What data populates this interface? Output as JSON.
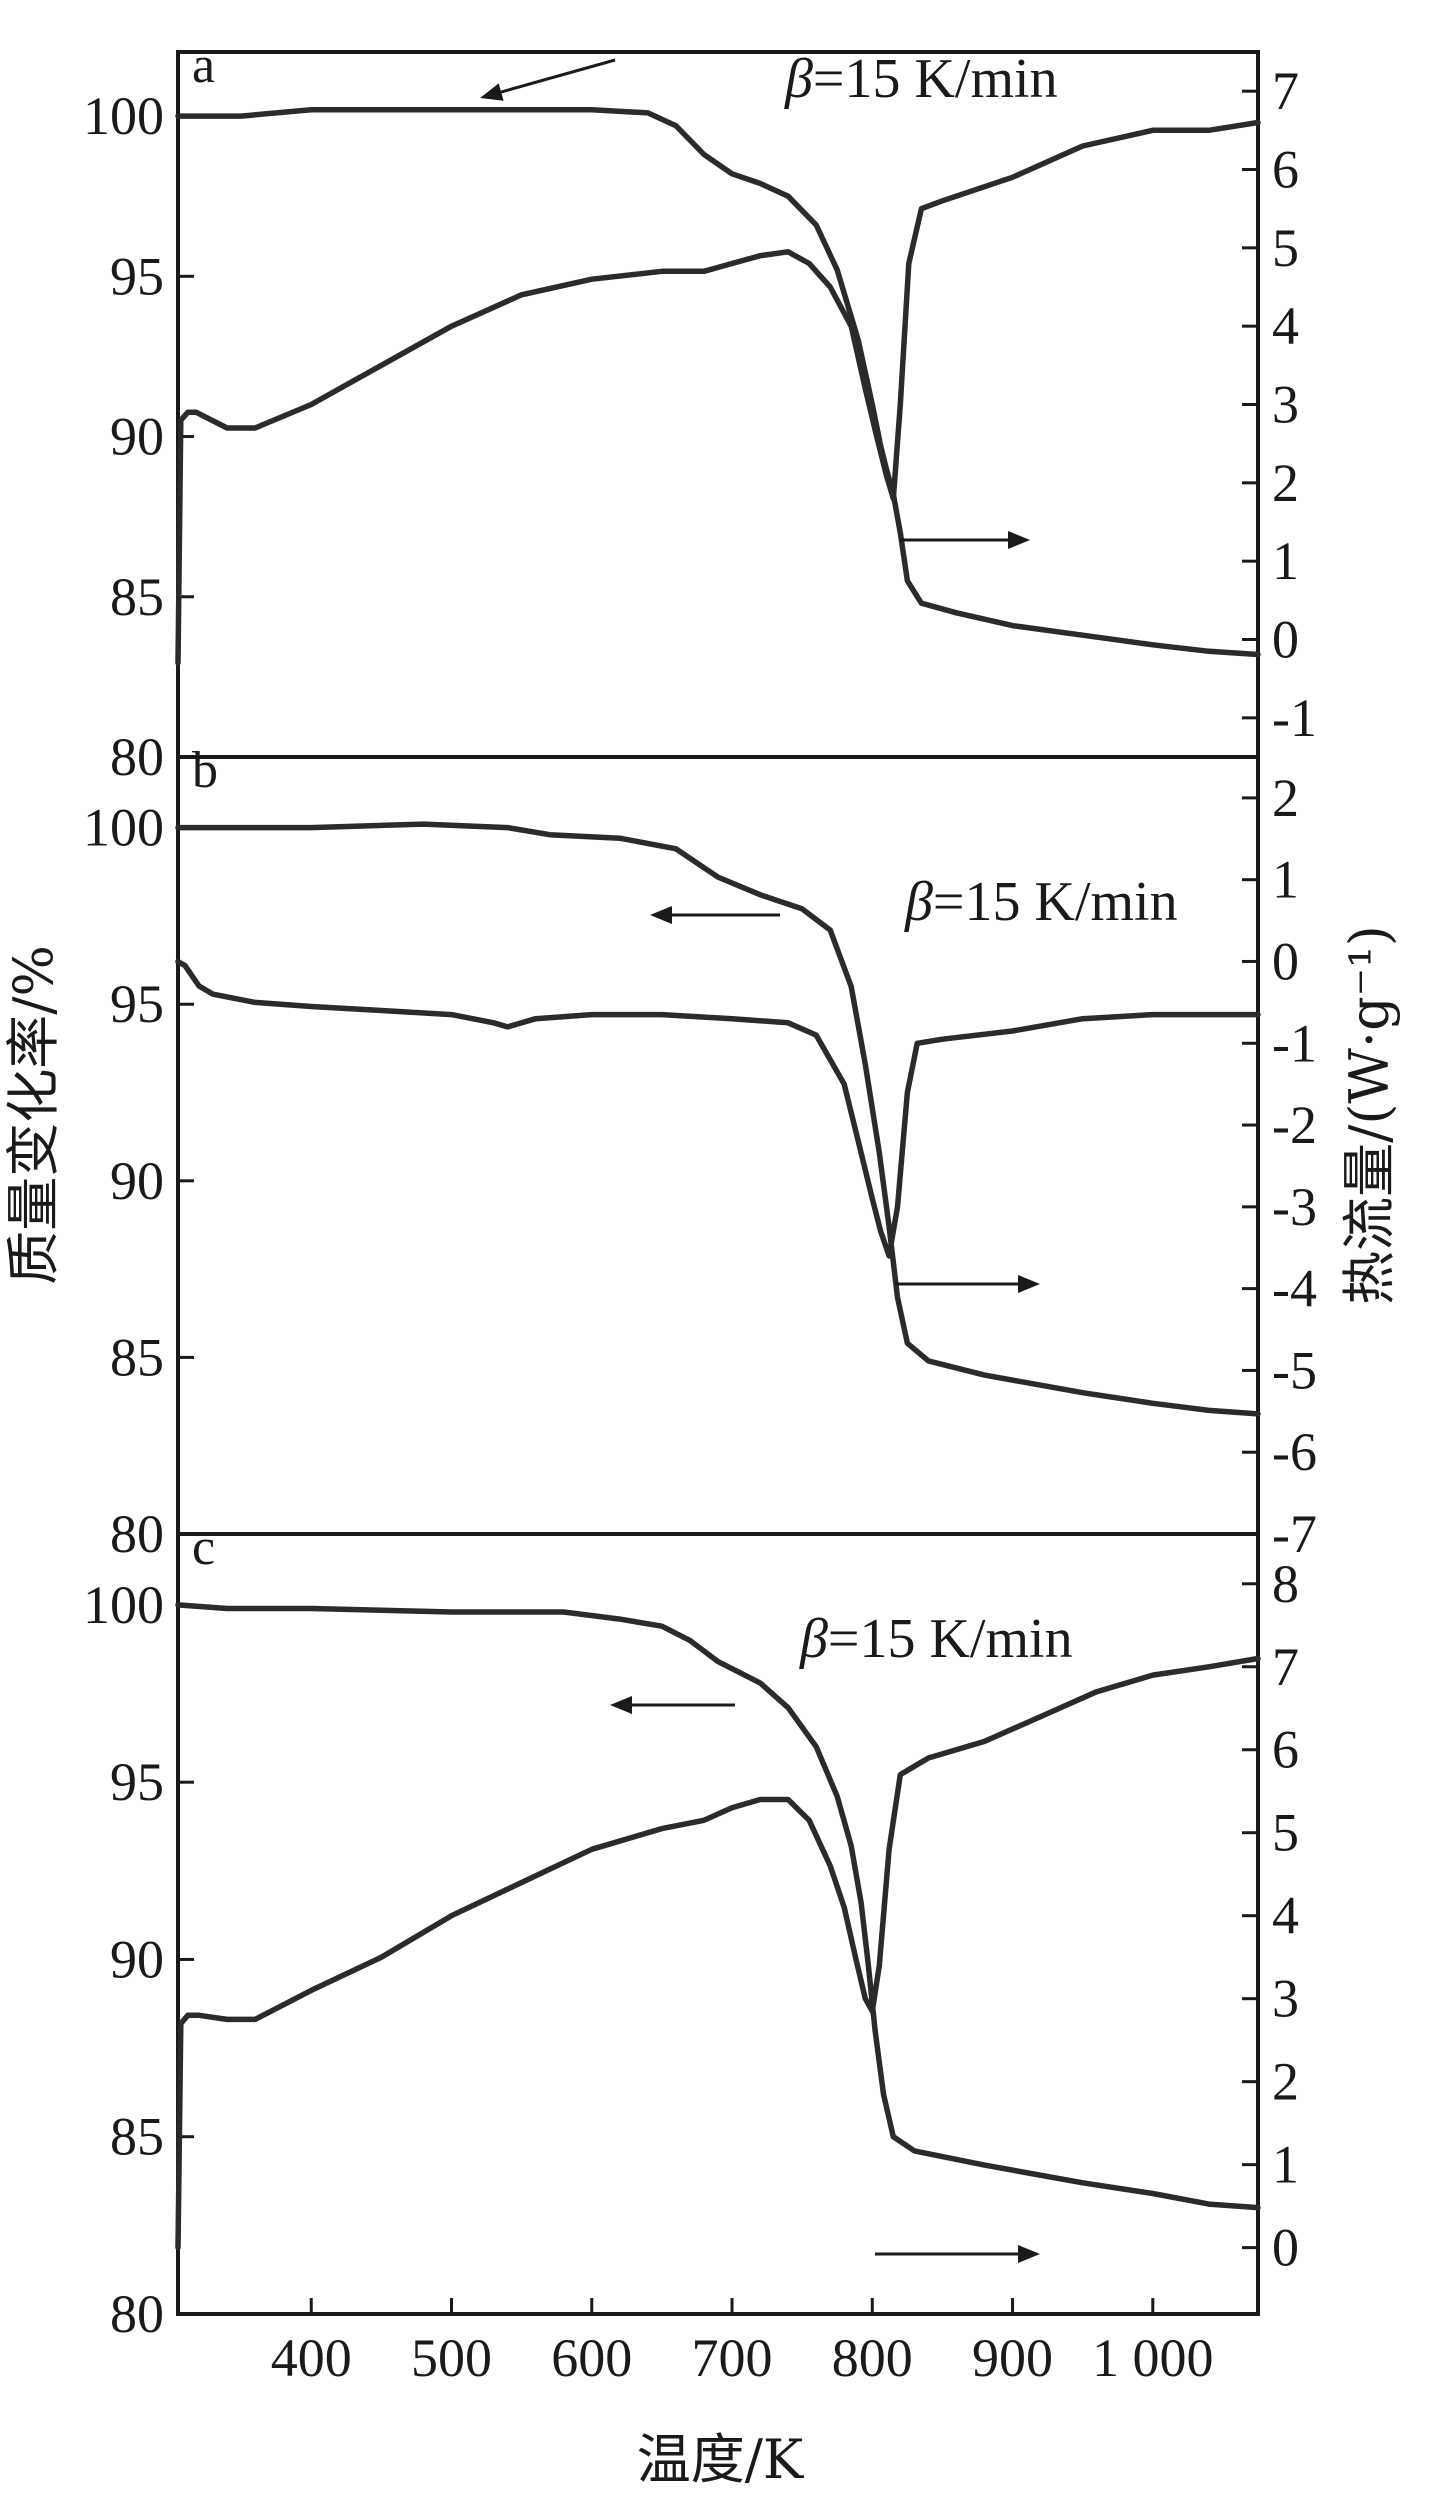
{
  "chart_data": {
    "type": "line",
    "layout": "three stacked panels sharing x axis",
    "xlabel": "温度/K",
    "ylabel_left": "质量变化率/%",
    "ylabel_right": "热流量/(W·g⁻¹)",
    "xlim": [
      305,
      1075
    ],
    "x_ticks": [
      400,
      500,
      600,
      700,
      800,
      900,
      1000
    ],
    "x_tick_labels": [
      "400",
      "500",
      "600",
      "700",
      "800",
      "900",
      "1 000"
    ],
    "panels": [
      {
        "label": "a",
        "annotation": "=15 K/min",
        "annotation_symbol": "β",
        "left_ylim": [
          80,
          102
        ],
        "left_ticks": [
          80,
          85,
          90,
          95,
          100
        ],
        "right_ylim": [
          -1.5,
          7.5
        ],
        "right_ticks": [
          -1,
          0,
          1,
          2,
          3,
          4,
          5,
          6,
          7
        ],
        "series": [
          {
            "axis": "left",
            "arrow": "left",
            "points": [
              [
                305,
                100
              ],
              [
                350,
                100
              ],
              [
                400,
                100.2
              ],
              [
                500,
                100.2
              ],
              [
                600,
                100.2
              ],
              [
                640,
                100.1
              ],
              [
                660,
                99.7
              ],
              [
                680,
                98.8
              ],
              [
                700,
                98.2
              ],
              [
                720,
                97.9
              ],
              [
                740,
                97.5
              ],
              [
                760,
                96.6
              ],
              [
                775,
                95.2
              ],
              [
                790,
                93
              ],
              [
                800,
                91
              ],
              [
                806,
                89.7
              ],
              [
                810,
                89
              ],
              [
                815,
                88.2
              ],
              [
                820,
                87
              ],
              [
                825,
                85.5
              ],
              [
                835,
                84.8
              ],
              [
                860,
                84.5
              ],
              [
                900,
                84.1
              ],
              [
                950,
                83.8
              ],
              [
                1000,
                83.5
              ],
              [
                1040,
                83.3
              ],
              [
                1075,
                83.2
              ]
            ]
          },
          {
            "axis": "right",
            "arrow": "right",
            "points": [
              [
                305,
                -0.3
              ],
              [
                307,
                2.8
              ],
              [
                312,
                2.9
              ],
              [
                318,
                2.9
              ],
              [
                340,
                2.7
              ],
              [
                360,
                2.7
              ],
              [
                400,
                3
              ],
              [
                450,
                3.5
              ],
              [
                500,
                4
              ],
              [
                550,
                4.4
              ],
              [
                600,
                4.6
              ],
              [
                650,
                4.7
              ],
              [
                680,
                4.7
              ],
              [
                700,
                4.8
              ],
              [
                720,
                4.9
              ],
              [
                740,
                4.95
              ],
              [
                755,
                4.8
              ],
              [
                770,
                4.5
              ],
              [
                785,
                4
              ],
              [
                795,
                3.2
              ],
              [
                803,
                2.6
              ],
              [
                810,
                2.1
              ],
              [
                815,
                1.8
              ],
              [
                820,
                3
              ],
              [
                826,
                4.8
              ],
              [
                835,
                5.5
              ],
              [
                850,
                5.6
              ],
              [
                900,
                5.9
              ],
              [
                950,
                6.3
              ],
              [
                1000,
                6.5
              ],
              [
                1040,
                6.5
              ],
              [
                1075,
                6.6
              ]
            ]
          }
        ]
      },
      {
        "label": "b",
        "annotation": "=15 K/min",
        "annotation_symbol": "β",
        "left_ylim": [
          80,
          102
        ],
        "left_ticks": [
          80,
          85,
          90,
          95,
          100
        ],
        "right_ylim": [
          -7,
          2.5
        ],
        "right_ticks": [
          -7,
          -6,
          -5,
          -4,
          -3,
          -2,
          -1,
          0,
          1,
          2
        ],
        "series": [
          {
            "axis": "left",
            "arrow": "left",
            "points": [
              [
                305,
                100
              ],
              [
                350,
                100
              ],
              [
                400,
                100
              ],
              [
                480,
                100.1
              ],
              [
                540,
                100
              ],
              [
                570,
                99.8
              ],
              [
                620,
                99.7
              ],
              [
                660,
                99.4
              ],
              [
                690,
                98.6
              ],
              [
                720,
                98.1
              ],
              [
                750,
                97.7
              ],
              [
                770,
                97.1
              ],
              [
                785,
                95.5
              ],
              [
                795,
                93.3
              ],
              [
                805,
                90.8
              ],
              [
                812,
                88.7
              ],
              [
                818,
                86.7
              ],
              [
                825,
                85.4
              ],
              [
                840,
                84.9
              ],
              [
                880,
                84.5
              ],
              [
                950,
                84
              ],
              [
                1000,
                83.7
              ],
              [
                1040,
                83.5
              ],
              [
                1075,
                83.4
              ]
            ]
          },
          {
            "axis": "right",
            "arrow": "right",
            "points": [
              [
                305,
                0
              ],
              [
                310,
                -0.05
              ],
              [
                320,
                -0.3
              ],
              [
                330,
                -0.4
              ],
              [
                360,
                -0.5
              ],
              [
                400,
                -0.55
              ],
              [
                450,
                -0.6
              ],
              [
                500,
                -0.65
              ],
              [
                530,
                -0.75
              ],
              [
                540,
                -0.8
              ],
              [
                560,
                -0.7
              ],
              [
                600,
                -0.65
              ],
              [
                650,
                -0.65
              ],
              [
                700,
                -0.7
              ],
              [
                740,
                -0.75
              ],
              [
                760,
                -0.9
              ],
              [
                780,
                -1.5
              ],
              [
                790,
                -2.2
              ],
              [
                800,
                -2.9
              ],
              [
                806,
                -3.3
              ],
              [
                812,
                -3.6
              ],
              [
                818,
                -3.0
              ],
              [
                825,
                -1.6
              ],
              [
                832,
                -1.0
              ],
              [
                850,
                -0.95
              ],
              [
                900,
                -0.85
              ],
              [
                950,
                -0.7
              ],
              [
                1000,
                -0.65
              ],
              [
                1040,
                -0.65
              ],
              [
                1075,
                -0.65
              ]
            ]
          }
        ]
      },
      {
        "label": "c",
        "annotation": "=15 K/min",
        "annotation_symbol": "β",
        "left_ylim": [
          80,
          102
        ],
        "left_ticks": [
          80,
          85,
          90,
          95,
          100
        ],
        "right_ylim": [
          -0.8,
          8.6
        ],
        "right_ticks": [
          0,
          1,
          2,
          3,
          4,
          5,
          6,
          7,
          8
        ],
        "series": [
          {
            "axis": "left",
            "arrow": "left",
            "points": [
              [
                305,
                100
              ],
              [
                340,
                99.9
              ],
              [
                400,
                99.9
              ],
              [
                500,
                99.8
              ],
              [
                580,
                99.8
              ],
              [
                620,
                99.6
              ],
              [
                650,
                99.4
              ],
              [
                670,
                99
              ],
              [
                690,
                98.4
              ],
              [
                720,
                97.8
              ],
              [
                740,
                97.1
              ],
              [
                760,
                96
              ],
              [
                775,
                94.6
              ],
              [
                785,
                93.2
              ],
              [
                792,
                91.6
              ],
              [
                797,
                89.9
              ],
              [
                802,
                88
              ],
              [
                808,
                86.2
              ],
              [
                815,
                85
              ],
              [
                830,
                84.6
              ],
              [
                880,
                84.2
              ],
              [
                950,
                83.7
              ],
              [
                1000,
                83.4
              ],
              [
                1040,
                83.1
              ],
              [
                1075,
                83
              ]
            ]
          },
          {
            "axis": "right",
            "arrow": "right",
            "points": [
              [
                305,
                0
              ],
              [
                307,
                2.7
              ],
              [
                312,
                2.8
              ],
              [
                320,
                2.8
              ],
              [
                340,
                2.75
              ],
              [
                360,
                2.75
              ],
              [
                400,
                3.1
              ],
              [
                450,
                3.5
              ],
              [
                500,
                4
              ],
              [
                550,
                4.4
              ],
              [
                600,
                4.8
              ],
              [
                650,
                5.05
              ],
              [
                680,
                5.15
              ],
              [
                700,
                5.3
              ],
              [
                720,
                5.4
              ],
              [
                740,
                5.4
              ],
              [
                755,
                5.15
              ],
              [
                770,
                4.6
              ],
              [
                780,
                4.1
              ],
              [
                788,
                3.5
              ],
              [
                795,
                3
              ],
              [
                800,
                2.85
              ],
              [
                805,
                3.4
              ],
              [
                812,
                4.8
              ],
              [
                820,
                5.7
              ],
              [
                840,
                5.9
              ],
              [
                880,
                6.1
              ],
              [
                920,
                6.4
              ],
              [
                960,
                6.7
              ],
              [
                1000,
                6.9
              ],
              [
                1040,
                7.0
              ],
              [
                1075,
                7.1
              ]
            ]
          }
        ]
      }
    ]
  }
}
